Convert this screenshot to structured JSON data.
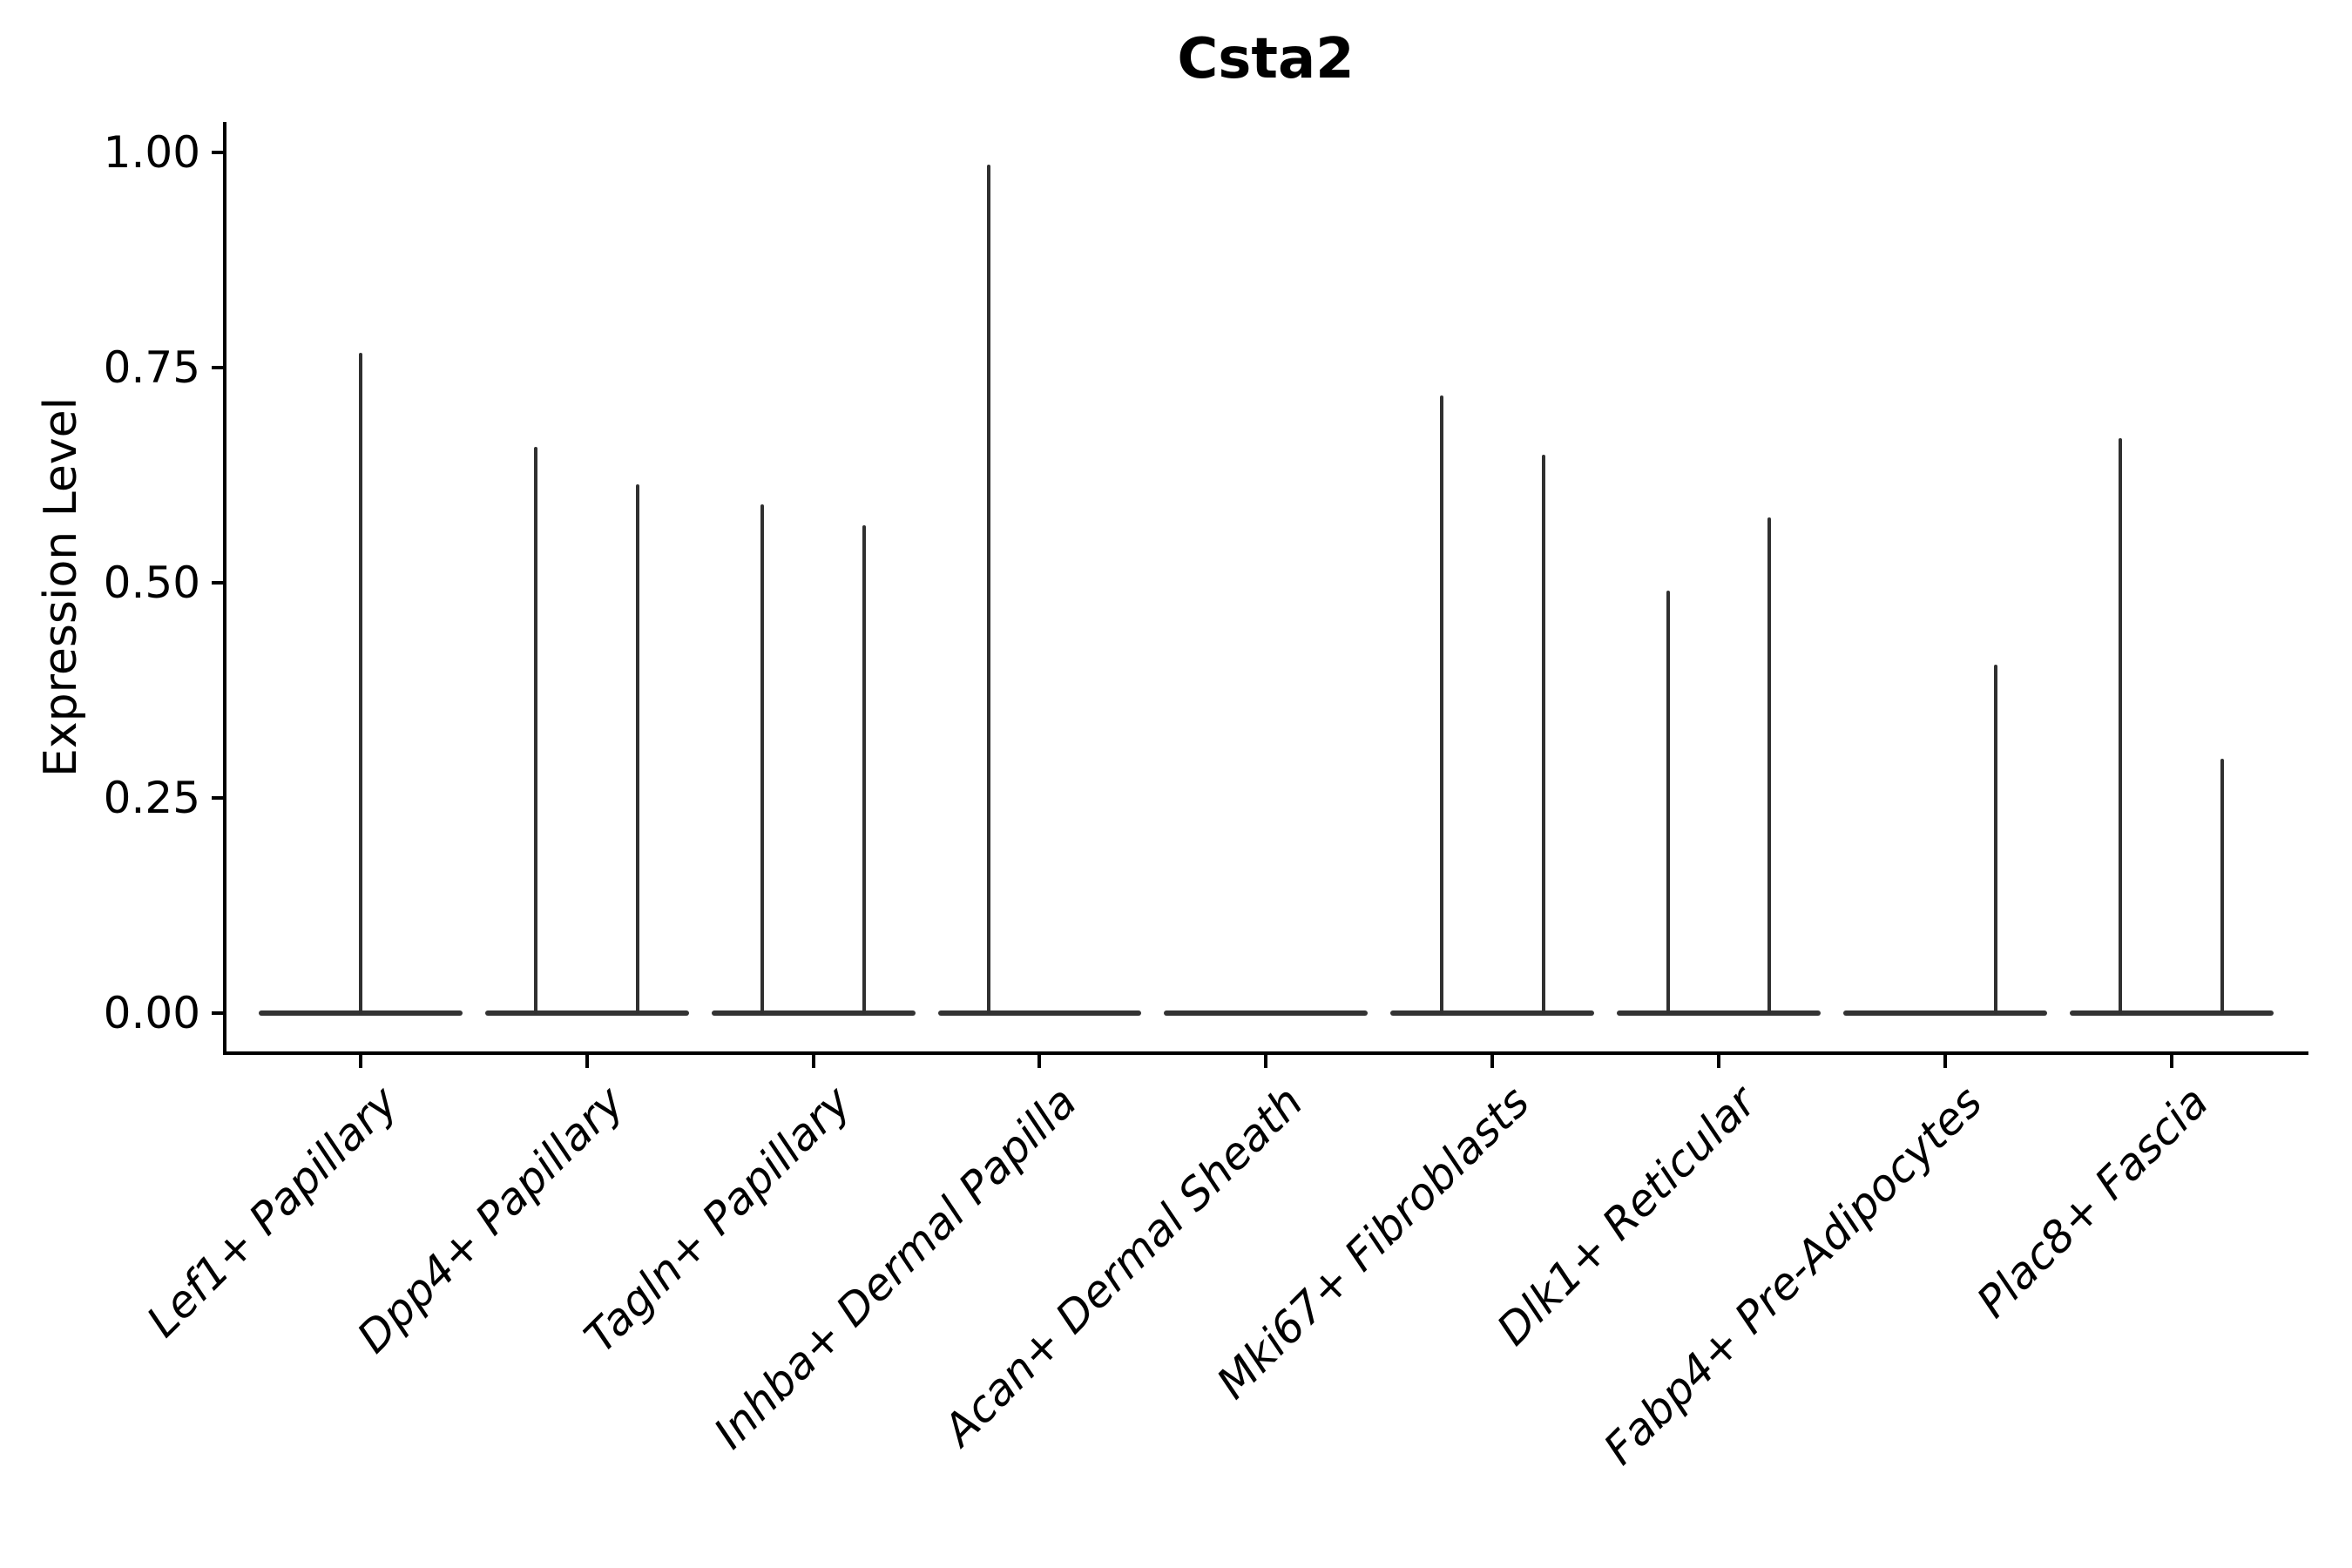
{
  "title": "Csta2",
  "axes": {
    "y_label": "Expression Level",
    "y_tick_labels": [
      "0.00",
      "0.25",
      "0.50",
      "0.75",
      "1.00"
    ],
    "y_tick_values": [
      0,
      0.25,
      0.5,
      0.75,
      1.0
    ],
    "x_tick_labels": [
      "Lef1+ Papillary",
      "Dpp4+ Papillary",
      "Tagln+ Papillary",
      "Inhba+ Dermal Papilla",
      "Acan+ Dermal Sheath",
      "Mki67+ Fibroblasts",
      "Dlk1+ Reticular",
      "Fabp4+ Pre-Adipocytes",
      "Plac8+ Fascia"
    ]
  },
  "style": {
    "background": "#ffffff",
    "text_color": "#000000",
    "spine_color": "#000000",
    "violin_color": "#303030",
    "base_color": "#333333"
  },
  "chart_data": {
    "type": "violin",
    "title": "Csta2",
    "xlabel": "",
    "ylabel": "Expression Level",
    "ylim": [
      -0.05,
      1.04
    ],
    "y_ticks": [
      0,
      0.25,
      0.5,
      0.75,
      1.0
    ],
    "grid": false,
    "legend": "none",
    "violin_total_width": 0.9,
    "split_offset": 0.225,
    "categories": [
      "Lef1+ Papillary",
      "Dpp4+ Papillary",
      "Tagln+ Papillary",
      "Inhba+ Dermal Papilla",
      "Acan+ Dermal Sheath",
      "Mki67+ Fibroblasts",
      "Dlk1+ Reticular",
      "Fabp4+ Pre-Adipocytes",
      "Plac8+ Fascia"
    ],
    "violins": [
      {
        "category": "Lef1+ Papillary",
        "split": [
          {
            "offset": 0,
            "max": 0.767
          }
        ]
      },
      {
        "category": "Dpp4+ Papillary",
        "split": [
          {
            "offset": -0.225,
            "max": 0.658
          },
          {
            "offset": 0.225,
            "max": 0.614
          }
        ]
      },
      {
        "category": "Tagln+ Papillary",
        "split": [
          {
            "offset": -0.225,
            "max": 0.591
          },
          {
            "offset": 0.225,
            "max": 0.567
          }
        ]
      },
      {
        "category": "Inhba+ Dermal Papilla",
        "split": [
          {
            "offset": -0.225,
            "max": 0.986
          },
          {
            "offset": 0.225,
            "max": 0
          }
        ]
      },
      {
        "category": "Acan+ Dermal Sheath",
        "split": [
          {
            "offset": 0,
            "max": 0
          }
        ]
      },
      {
        "category": "Mki67+ Fibroblasts",
        "split": [
          {
            "offset": -0.225,
            "max": 0.718
          },
          {
            "offset": 0.225,
            "max": 0.649
          }
        ]
      },
      {
        "category": "Dlk1+ Reticular",
        "split": [
          {
            "offset": -0.225,
            "max": 0.491
          },
          {
            "offset": 0.225,
            "max": 0.576
          }
        ]
      },
      {
        "category": "Fabp4+ Pre-Adipocytes",
        "split": [
          {
            "offset": -0.225,
            "max": 0
          },
          {
            "offset": 0.225,
            "max": 0.405
          }
        ]
      },
      {
        "category": "Plac8+ Fascia",
        "split": [
          {
            "offset": -0.225,
            "max": 0.668
          },
          {
            "offset": 0.225,
            "max": 0.296
          }
        ]
      }
    ],
    "baseline_value": 0
  }
}
